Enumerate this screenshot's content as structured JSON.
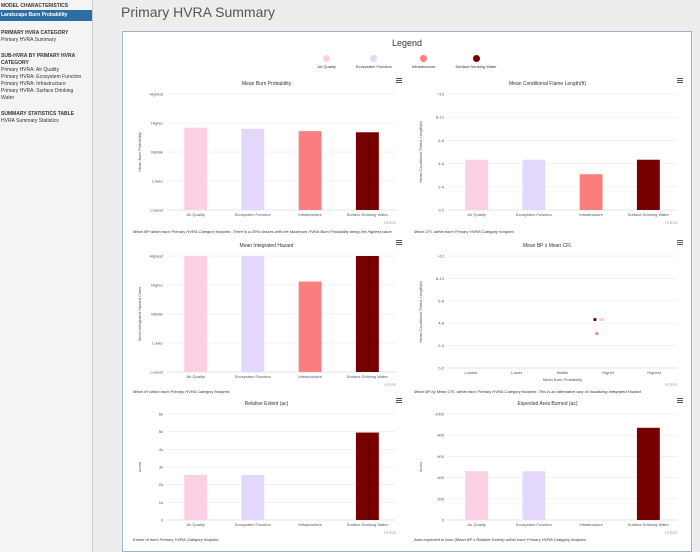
{
  "sidebar": {
    "items": [
      {
        "label": "MODEL CHARACTERISTICS",
        "kind": "head"
      },
      {
        "label": "Landscape Burn Probability",
        "kind": "active"
      },
      {
        "label": "",
        "kind": "gap"
      },
      {
        "label": "PRIMARY HVRA CATEGORY",
        "kind": "head"
      },
      {
        "label": "Primary HVRA Summary",
        "kind": "item"
      },
      {
        "label": "",
        "kind": "gap"
      },
      {
        "label": "SUB-HVRA BY PRIMARY HVRA",
        "kind": "head"
      },
      {
        "label": "CATEGORY",
        "kind": "head"
      },
      {
        "label": "Primary HVRA: Air Quality",
        "kind": "item"
      },
      {
        "label": "Primary HVRA: Ecosystem Function",
        "kind": "item"
      },
      {
        "label": "Primary HVRA: Infrastructure",
        "kind": "item"
      },
      {
        "label": "Primary HVRA: Surface Drinking",
        "kind": "item"
      },
      {
        "label": "Water",
        "kind": "item"
      },
      {
        "label": "",
        "kind": "gap"
      },
      {
        "label": "SUMMARY STATISTICS TABLE",
        "kind": "head"
      },
      {
        "label": "HVRA Summary Statistics",
        "kind": "item"
      }
    ]
  },
  "page_title": "Primary HVRA Summary",
  "legend": {
    "title": "Legend",
    "items": [
      {
        "label": "Air Quality",
        "color": "#fcd0e4"
      },
      {
        "label": "Ecosystem Function",
        "color": "#e3d7fb"
      },
      {
        "label": "Infrastructure",
        "color": "#fa7e7e"
      },
      {
        "label": "Surface Drinking Water",
        "color": "#760000"
      }
    ]
  },
  "chart_data": [
    {
      "type": "bar",
      "title": "Mean Burn Probability",
      "ylabel": "Mean Burn Probability",
      "ytick_labels": [
        "Lowest",
        "Lower",
        "Middle",
        "Higher",
        "Highest"
      ],
      "ylim": [
        0,
        5
      ],
      "categories": [
        "Air Quality",
        "Ecosystem Function",
        "Infrastructure",
        "Surface Drinking Water"
      ],
      "values": [
        3.55,
        3.5,
        3.4,
        3.35
      ],
      "credit": "HTDSS",
      "caption": "Mean BP within each Primary HVRA Category footprint. There is a 20% classes with the Maximum HVRA Burn Probability being the Highest value."
    },
    {
      "type": "bar",
      "title": "Mean Conditional Flame Length(ft)",
      "ylabel": "Mean Conditional Flame Length(ft)",
      "ytick_labels": [
        "0-2",
        "2-4",
        "4-6",
        "6-8",
        "8-12",
        ">12"
      ],
      "ylim": [
        0,
        6
      ],
      "categories": [
        "Air Quality",
        "Ecosystem Function",
        "Infrastructure",
        "Surface Drinking Water"
      ],
      "values": [
        2.6,
        2.6,
        1.85,
        2.6
      ],
      "credit": "HTDSS",
      "caption": "Mean CFL within each Primary HVRA Category footprint."
    },
    {
      "type": "bar",
      "title": "Mean Integrated Hazard",
      "ylabel": "Mean Integrated Hazard Class",
      "ytick_labels": [
        "Lowest",
        "Lower",
        "Middle",
        "Higher",
        "Highest"
      ],
      "ylim": [
        0,
        5
      ],
      "categories": [
        "Air Quality",
        "Ecosystem Function",
        "Infrastructure",
        "Surface Drinking Water"
      ],
      "values": [
        5,
        5,
        3.9,
        5
      ],
      "credit": "HTDSS",
      "caption": "Mean IH within each Primary HVRA Category footprint."
    },
    {
      "type": "scatter",
      "title": "Mean BP x Mean CFL",
      "xlabel": "Mean Burn Probability",
      "ylabel": "Mean Conditional Flame Length(ft)",
      "xtick_labels": [
        "Lowest",
        "Lower",
        "Middle",
        "Higher",
        "Highest"
      ],
      "ytick_labels": [
        "0-2",
        "2-4",
        "4-6",
        "6-8",
        "8-12",
        ">12"
      ],
      "xlim": [
        0,
        5
      ],
      "ylim": [
        0,
        6
      ],
      "points": [
        {
          "x": 3.55,
          "y": 2.6,
          "color": "#fcd0e4"
        },
        {
          "x": 3.5,
          "y": 2.6,
          "color": "#e3d7fb"
        },
        {
          "x": 3.4,
          "y": 1.85,
          "color": "#fa7e7e"
        },
        {
          "x": 3.35,
          "y": 2.6,
          "color": "#760000"
        }
      ],
      "credit": "HTDSS",
      "caption": "Mean BP by Mean CFL within each Primary HVRA Category footprint. This is an alternative way of visualizing Integrated Hazard."
    },
    {
      "type": "bar",
      "title": "Relative Extent (ac)",
      "ylabel": "Acres",
      "ytick_labels": [
        "0",
        "1k",
        "2k",
        "3k",
        "4k",
        "5k",
        "6k"
      ],
      "ylim": [
        0,
        6000
      ],
      "categories": [
        "Air Quality",
        "Ecosystem Function",
        "Infrastructure",
        "Surface Drinking Water"
      ],
      "values": [
        2550,
        2550,
        0,
        4950
      ],
      "credit": "HTDSS",
      "caption": "Extent of each Primary HVRA Category footprint."
    },
    {
      "type": "bar",
      "title": "Expected Area Burned (ac)",
      "ylabel": "Acres",
      "ytick_labels": [
        "0",
        "200",
        "400",
        "600",
        "800",
        "1000"
      ],
      "ylim": [
        0,
        1000
      ],
      "categories": [
        "Air Quality",
        "Ecosystem Function",
        "Infrastructure",
        "Surface Drinking Water"
      ],
      "values": [
        460,
        460,
        0,
        870
      ],
      "credit": "HTDSS",
      "caption": "Area expected to burn (Mean BP x Relative Extent) within each Primary HVRA Category footprint."
    }
  ]
}
